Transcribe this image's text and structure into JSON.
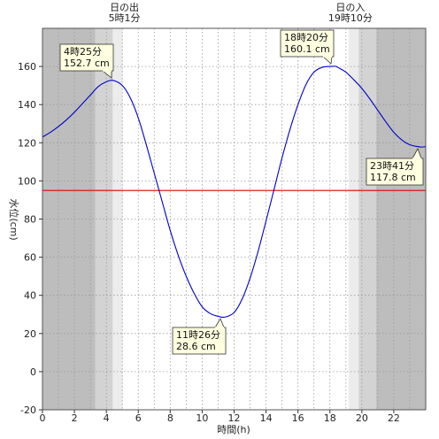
{
  "chart_data": {
    "type": "line",
    "xlabel": "時間(h)",
    "ylabel": "水位(cm)",
    "xlim": [
      0,
      24
    ],
    "ylim": [
      -20,
      180
    ],
    "x_ticks": [
      0,
      2,
      4,
      6,
      8,
      10,
      12,
      14,
      16,
      18,
      20,
      22
    ],
    "y_ticks": [
      -20,
      0,
      20,
      40,
      60,
      80,
      100,
      120,
      140,
      160
    ],
    "grid": true,
    "reference_line": {
      "value": 95,
      "color": "#e00000"
    },
    "sun_events": [
      {
        "label": "日の出",
        "time": "5時1分",
        "hour": 5.02
      },
      {
        "label": "日の入",
        "time": "19時10分",
        "hour": 19.17
      }
    ],
    "night_shading": {
      "dark_before": 3.3,
      "dim_before": 4.4,
      "light_before": 5.02,
      "light_after": 19.17,
      "dim_after": 19.8,
      "dark_after": 20.9
    },
    "extremes": [
      {
        "time_label": "4時25分",
        "value_label": "152.7 cm",
        "hour": 4.42,
        "value": 152.7
      },
      {
        "time_label": "11時26分",
        "value_label": "28.6 cm",
        "hour": 11.43,
        "value": 28.6
      },
      {
        "time_label": "18時20分",
        "value_label": "160.1 cm",
        "hour": 18.33,
        "value": 160.1
      },
      {
        "time_label": "23時41分",
        "value_label": "117.8 cm",
        "hour": 23.68,
        "value": 117.8
      }
    ],
    "series": [
      {
        "color": "#0000cc",
        "x": [
          0,
          0.5,
          1,
          1.5,
          2,
          2.5,
          3,
          3.5,
          4,
          4.42,
          5,
          5.5,
          6,
          6.5,
          7,
          7.5,
          8,
          8.5,
          9,
          9.5,
          10,
          10.5,
          11,
          11.43,
          12,
          12.5,
          13,
          13.5,
          14,
          14.5,
          15,
          15.5,
          16,
          16.5,
          17,
          17.5,
          18,
          18.33,
          18.5,
          19,
          19.5,
          20,
          20.5,
          21,
          21.5,
          22,
          22.5,
          23,
          23.68,
          24
        ],
        "y": [
          123,
          125.5,
          128.5,
          132,
          136,
          140.5,
          145,
          149.5,
          152,
          152.7,
          150,
          143.5,
          133,
          119,
          104,
          89,
          74,
          61,
          50,
          41,
          34,
          30.5,
          29,
          28.6,
          31,
          38,
          49,
          63,
          79,
          95.5,
          112,
          127,
          140,
          150.5,
          157,
          159.5,
          160,
          160.1,
          159.5,
          157,
          153,
          148.5,
          143,
          137,
          131,
          125.5,
          121.5,
          119,
          117.8,
          118
        ]
      }
    ]
  }
}
